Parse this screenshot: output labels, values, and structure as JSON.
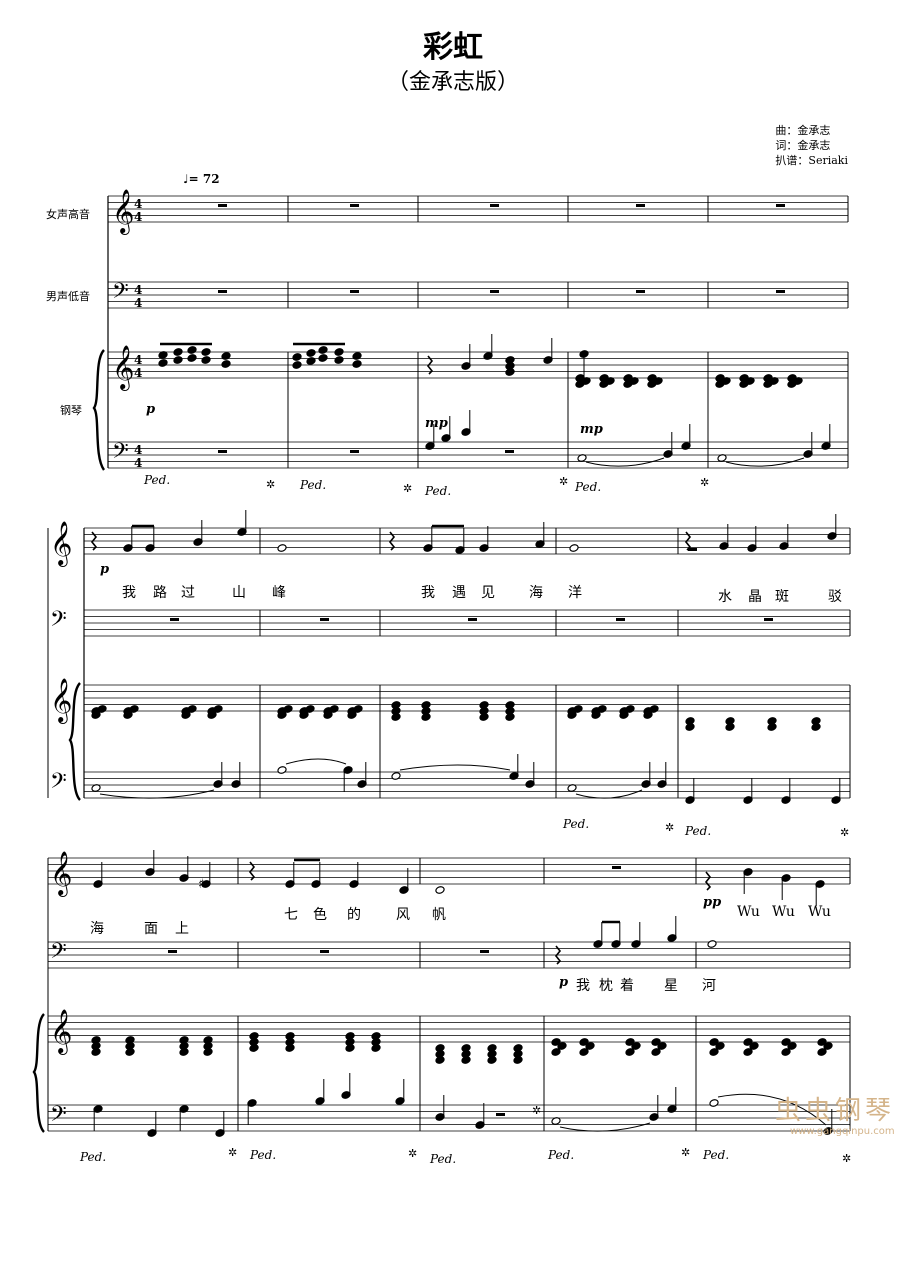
{
  "title": "彩虹",
  "subtitle": "（金承志版）",
  "credits": {
    "composer": "曲：金承志",
    "lyricist": "词：金承志",
    "arranger": "扒谱：Seriaki"
  },
  "tempo": "= 72",
  "instruments": {
    "soprano": "女声高音",
    "bass": "男声低音",
    "piano": "钢琴"
  },
  "dynamics": {
    "p": "p",
    "mp": "mp",
    "pp": "pp"
  },
  "pedal": {
    "mark": "Ped.",
    "release": "✲"
  },
  "lyrics": {
    "line1": [
      "我",
      "路",
      "过",
      "山",
      "峰",
      "我",
      "遇",
      "见",
      "海",
      "洋",
      "水",
      "晶",
      "斑",
      "驳"
    ],
    "line2": [
      "海",
      "面",
      "上",
      "七",
      "色",
      "的",
      "风",
      "帆",
      "Wu",
      "Wu",
      "Wu"
    ],
    "bass_line": [
      "我",
      "枕",
      "着",
      "星",
      "河"
    ]
  },
  "watermark": {
    "text": "虫虫钢琴",
    "url": "www.gangqinpu.com"
  }
}
